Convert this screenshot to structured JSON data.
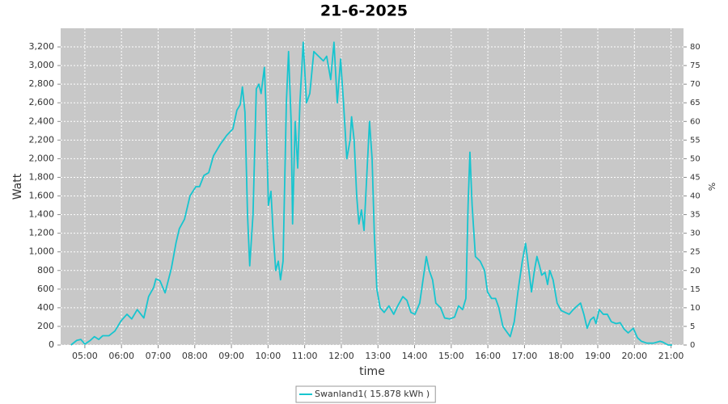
{
  "chart_data": {
    "type": "line",
    "title": "21-6-2025",
    "x_label": "time",
    "y_label": "Watt",
    "y2_label": "%",
    "x": [
      4.62,
      4.78,
      4.89,
      5.0,
      5.15,
      5.26,
      5.38,
      5.49,
      5.66,
      5.82,
      5.99,
      6.15,
      6.28,
      6.43,
      6.61,
      6.74,
      6.88,
      6.94,
      7.05,
      7.19,
      7.36,
      7.49,
      7.58,
      7.72,
      7.87,
      8.03,
      8.13,
      8.25,
      8.38,
      8.51,
      8.69,
      8.87,
      9.04,
      9.15,
      9.24,
      9.3,
      9.37,
      9.44,
      9.5,
      9.59,
      9.68,
      9.75,
      9.81,
      9.9,
      9.94,
      10.01,
      10.08,
      10.14,
      10.21,
      10.28,
      10.34,
      10.41,
      10.5,
      10.56,
      10.63,
      10.67,
      10.74,
      10.81,
      10.87,
      10.96,
      11.05,
      11.14,
      11.25,
      11.38,
      11.51,
      11.6,
      11.71,
      11.8,
      11.89,
      11.98,
      12.06,
      12.15,
      12.24,
      12.28,
      12.35,
      12.42,
      12.48,
      12.55,
      12.62,
      12.68,
      12.77,
      12.84,
      12.9,
      12.97,
      13.06,
      13.17,
      13.3,
      13.43,
      13.54,
      13.68,
      13.79,
      13.9,
      14.01,
      14.14,
      14.23,
      14.32,
      14.4,
      14.49,
      14.58,
      14.71,
      14.82,
      14.96,
      15.09,
      15.2,
      15.31,
      15.4,
      15.46,
      15.51,
      15.57,
      15.66,
      15.79,
      15.91,
      15.99,
      16.1,
      16.21,
      16.3,
      16.41,
      16.5,
      16.61,
      16.72,
      16.83,
      16.94,
      17.03,
      17.12,
      17.19,
      17.27,
      17.34,
      17.41,
      17.47,
      17.56,
      17.63,
      17.69,
      17.78,
      17.89,
      18.0,
      18.11,
      18.22,
      18.33,
      18.44,
      18.53,
      18.62,
      18.71,
      18.8,
      18.89,
      18.95,
      19.04,
      19.15,
      19.26,
      19.37,
      19.5,
      19.61,
      19.72,
      19.83,
      19.97,
      20.08,
      20.19,
      20.34,
      20.52,
      20.7,
      20.78,
      20.92,
      21.03
    ],
    "series": [
      {
        "name": "Swanland1( 15.878 kWh )",
        "color": "#17c5cf",
        "values": [
          0,
          50,
          60,
          10,
          50,
          90,
          60,
          100,
          100,
          150,
          260,
          330,
          280,
          380,
          290,
          520,
          620,
          710,
          690,
          560,
          820,
          1100,
          1250,
          1350,
          1600,
          1700,
          1700,
          1820,
          1850,
          2030,
          2150,
          2250,
          2320,
          2520,
          2580,
          2770,
          2500,
          1400,
          850,
          1400,
          2750,
          2800,
          2700,
          2980,
          2600,
          1500,
          1650,
          1200,
          800,
          900,
          700,
          900,
          2600,
          3150,
          2400,
          1300,
          2400,
          1900,
          2600,
          3250,
          2600,
          2700,
          3150,
          3100,
          3050,
          3100,
          2850,
          3250,
          2600,
          3070,
          2600,
          2000,
          2200,
          2450,
          2200,
          1600,
          1300,
          1450,
          1230,
          1700,
          2400,
          2000,
          1200,
          600,
          400,
          350,
          420,
          330,
          420,
          520,
          480,
          350,
          330,
          450,
          700,
          950,
          800,
          700,
          450,
          400,
          290,
          280,
          300,
          420,
          380,
          500,
          1500,
          2070,
          1500,
          950,
          900,
          800,
          570,
          500,
          500,
          400,
          200,
          150,
          90,
          250,
          600,
          900,
          1090,
          800,
          570,
          800,
          950,
          850,
          750,
          780,
          650,
          800,
          700,
          450,
          370,
          350,
          330,
          380,
          420,
          450,
          330,
          180,
          270,
          300,
          230,
          380,
          330,
          330,
          250,
          230,
          240,
          170,
          130,
          180,
          80,
          40,
          20,
          20,
          40,
          30,
          0,
          0
        ]
      }
    ],
    "xlim": [
      4.34,
      21.34
    ],
    "xticks": [
      {
        "value": 5,
        "label": "05:00"
      },
      {
        "value": 6,
        "label": "06:00"
      },
      {
        "value": 7,
        "label": "07:00"
      },
      {
        "value": 8,
        "label": "08:00"
      },
      {
        "value": 9,
        "label": "09:00"
      },
      {
        "value": 10,
        "label": "10:00"
      },
      {
        "value": 11,
        "label": "11:00"
      },
      {
        "value": 12,
        "label": "12:00"
      },
      {
        "value": 13,
        "label": "13:00"
      },
      {
        "value": 14,
        "label": "14:00"
      },
      {
        "value": 15,
        "label": "15:00"
      },
      {
        "value": 16,
        "label": "16:00"
      },
      {
        "value": 17,
        "label": "17:00"
      },
      {
        "value": 18,
        "label": "18:00"
      },
      {
        "value": 19,
        "label": "19:00"
      },
      {
        "value": 20,
        "label": "20:00"
      },
      {
        "value": 21,
        "label": "21:00"
      }
    ],
    "ylim": [
      0,
      3400
    ],
    "yticks": [
      0,
      200,
      400,
      600,
      800,
      {
        "value": 1000,
        "label": "1,000"
      },
      {
        "value": 1200,
        "label": "1,200"
      },
      {
        "value": 1400,
        "label": "1,400"
      },
      {
        "value": 1600,
        "label": "1,600"
      },
      {
        "value": 1800,
        "label": "1,800"
      },
      {
        "value": 2000,
        "label": "2,000"
      },
      {
        "value": 2200,
        "label": "2,200"
      },
      {
        "value": 2400,
        "label": "2,400"
      },
      {
        "value": 2600,
        "label": "2,600"
      },
      {
        "value": 2800,
        "label": "2,800"
      },
      {
        "value": 3000,
        "label": "3,000"
      },
      {
        "value": 3200,
        "label": "3,200"
      }
    ],
    "y2lim": [
      0,
      85
    ],
    "y2ticks": [
      0,
      5,
      10,
      15,
      20,
      25,
      30,
      35,
      40,
      45,
      50,
      55,
      60,
      65,
      70,
      75,
      80
    ],
    "grid": true,
    "legend": "bottom"
  }
}
